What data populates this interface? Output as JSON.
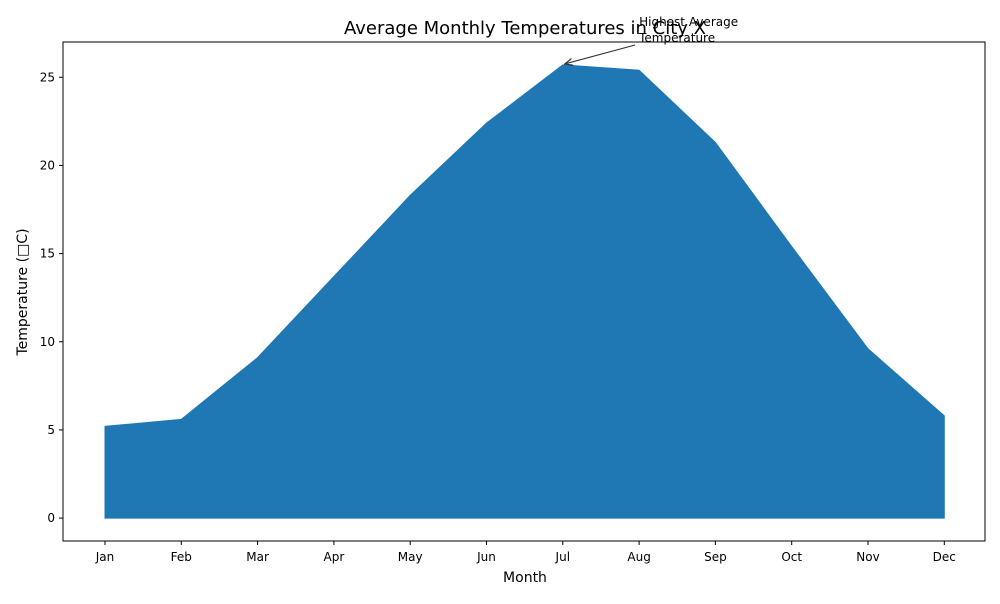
{
  "chart_data": {
    "type": "area",
    "title": "Average Monthly Temperatures in City X",
    "xlabel": "Month",
    "ylabel": "Temperature (□C)",
    "categories": [
      "Jan",
      "Feb",
      "Mar",
      "Apr",
      "May",
      "Jun",
      "Jul",
      "Aug",
      "Sep",
      "Oct",
      "Nov",
      "Dec"
    ],
    "series": [
      {
        "values": [
          5.2,
          5.6,
          9.1,
          13.7,
          18.3,
          22.4,
          25.7,
          25.4,
          21.3,
          15.4,
          9.6,
          5.8
        ],
        "color": "#1f77b4"
      }
    ],
    "ylim": [
      -1.3,
      27.0
    ],
    "yticks": [
      0,
      5,
      10,
      15,
      20,
      25
    ],
    "grid": false,
    "legend": "none",
    "annotation": {
      "lines": [
        "Highest Average",
        "Temperature"
      ],
      "target_category": "Jul",
      "target_value": 25.7
    }
  }
}
